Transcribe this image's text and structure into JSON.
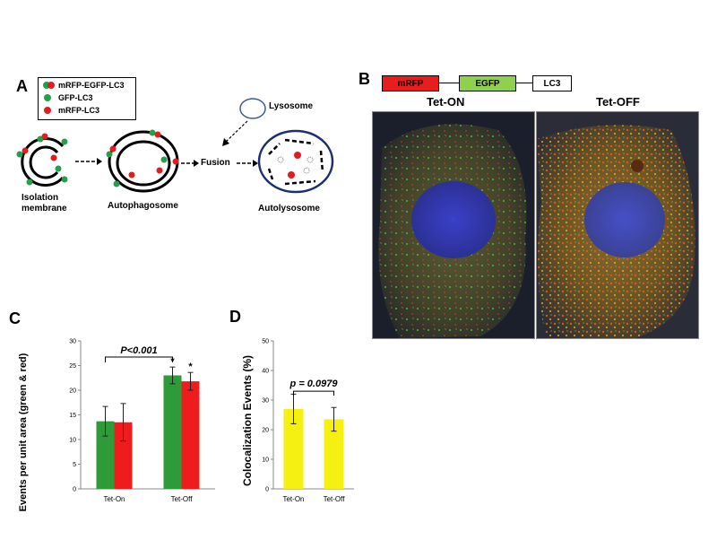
{
  "panel_a": {
    "letter": "A",
    "legend": {
      "items": [
        {
          "label": "mRFP-EGFP-LC3",
          "marker": "green-red-dot"
        },
        {
          "label": "GFP-LC3",
          "marker": "green-dot"
        },
        {
          "label": "mRFP-LC3",
          "marker": "red-dot"
        }
      ]
    },
    "stages": {
      "isolation_membrane": "Isolation\nmembrane",
      "autophagosome": "Autophagosome",
      "fusion": "Fusion",
      "lysosome": "Lysosome",
      "autolysosome": "Autolysosome"
    }
  },
  "panel_b": {
    "letter": "B",
    "construct": [
      "mRFP",
      "EGFP",
      "LC3"
    ],
    "images": [
      "Tet-ON",
      "Tet-OFF"
    ],
    "colors": {
      "mrfp": "#e81d1d",
      "egfp": "#8fd14f"
    }
  },
  "panel_c": {
    "letter": "C",
    "significance": "P<0.001",
    "star": "*"
  },
  "panel_d": {
    "letter": "D",
    "significance": "p = 0.0979"
  },
  "chart_data": [
    {
      "id": "C",
      "type": "bar",
      "categories": [
        "Tet-On",
        "Tet-Off"
      ],
      "series": [
        {
          "values": [
            13.7,
            23.0
          ],
          "errors": [
            3.0,
            1.7
          ],
          "color": "#2e9a38"
        },
        {
          "values": [
            13.5,
            21.8
          ],
          "errors": [
            3.8,
            1.8
          ],
          "color": "#ee1c1c"
        }
      ],
      "ylabel": "Events per unit area  (green & red)",
      "ylim": [
        0,
        30
      ],
      "yticks": [
        0,
        5,
        10,
        15,
        20,
        25,
        30
      ],
      "annotation": "P<0.001"
    },
    {
      "id": "D",
      "type": "bar",
      "categories": [
        "Tet-On",
        "Tet-Off"
      ],
      "series": [
        {
          "values": [
            27.0,
            23.5
          ],
          "errors": [
            5.0,
            4.0
          ],
          "color": "#f5ef12"
        }
      ],
      "ylabel": "Colocalization Events (%)",
      "ylim": [
        0,
        50
      ],
      "yticks": [
        0,
        10,
        20,
        30,
        40,
        50
      ],
      "annotation": "p = 0.0979"
    }
  ]
}
